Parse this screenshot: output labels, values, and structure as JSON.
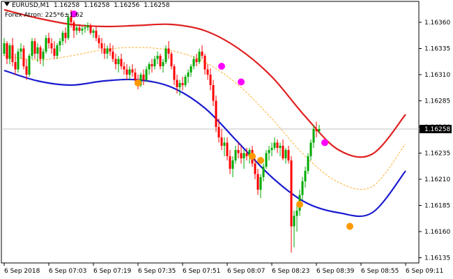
{
  "symbol": "EURUSD,M1",
  "ohlc": [
    "1.16258",
    "1.16258",
    "1.16256",
    "1.16258"
  ],
  "indicator": "Forex Atron: 225*6±1.62",
  "current_price": "1.16258",
  "colors": {
    "bull": "#00aa00",
    "bear": "#ff0000",
    "upper_band": "#e02020",
    "lower_band": "#1a1ad0",
    "mid_band": "#ffb030",
    "sell_dot": "#ff00ff",
    "buy_dot": "#ff9900",
    "axis": "#000000"
  },
  "chart_data": {
    "type": "candlestick",
    "price_axis": {
      "ticks": [
        "1.16360",
        "1.16335",
        "1.16310",
        "1.16285",
        "1.16260",
        "1.16235",
        "1.16210",
        "1.16185",
        "1.16160",
        "1.16135"
      ],
      "range": [
        1.1613,
        1.1638
      ]
    },
    "time_axis": {
      "ticks": [
        "6 Sep 2018",
        "6 Sep 07:03",
        "6 Sep 07:19",
        "6 Sep 07:35",
        "6 Sep 07:51",
        "6 Sep 08:07",
        "6 Sep 08:23",
        "6 Sep 08:39",
        "6 Sep 08:55",
        "6 Sep 09:11"
      ],
      "minutes": [
        0,
        16,
        32,
        48,
        64,
        80,
        96,
        112,
        128,
        144
      ]
    },
    "candles": [
      [
        1.1633,
        1.16345,
        1.16328,
        1.1634
      ],
      [
        1.1634,
        1.16342,
        1.1632,
        1.16325
      ],
      [
        1.16325,
        1.1634,
        1.1632,
        1.16338
      ],
      [
        1.16338,
        1.16345,
        1.16318,
        1.16322
      ],
      [
        1.16322,
        1.1633,
        1.1631,
        1.16315
      ],
      [
        1.16315,
        1.16335,
        1.16312,
        1.16332
      ],
      [
        1.16332,
        1.1634,
        1.16325,
        1.16335
      ],
      [
        1.16335,
        1.16338,
        1.16315,
        1.16318
      ],
      [
        1.16318,
        1.16325,
        1.16305,
        1.1631
      ],
      [
        1.1631,
        1.1633,
        1.16308,
        1.16328
      ],
      [
        1.16328,
        1.16345,
        1.16325,
        1.16342
      ],
      [
        1.16342,
        1.16345,
        1.16325,
        1.1633
      ],
      [
        1.1633,
        1.1634,
        1.16322,
        1.16336
      ],
      [
        1.16336,
        1.16338,
        1.1632,
        1.16325
      ],
      [
        1.16325,
        1.16335,
        1.16318,
        1.16332
      ],
      [
        1.16332,
        1.16348,
        1.1633,
        1.16345
      ],
      [
        1.16345,
        1.1635,
        1.16335,
        1.1634
      ],
      [
        1.1634,
        1.16345,
        1.1633,
        1.16335
      ],
      [
        1.16335,
        1.16342,
        1.16325,
        1.16328
      ],
      [
        1.16328,
        1.1634,
        1.16325,
        1.16338
      ],
      [
        1.16338,
        1.16345,
        1.16332,
        1.16342
      ],
      [
        1.16342,
        1.16352,
        1.16338,
        1.1635
      ],
      [
        1.1635,
        1.16355,
        1.1634,
        1.16345
      ],
      [
        1.16345,
        1.16368,
        1.16343,
        1.16365
      ],
      [
        1.16365,
        1.16372,
        1.16355,
        1.1636
      ],
      [
        1.1636,
        1.16362,
        1.16345,
        1.16352
      ],
      [
        1.16352,
        1.16358,
        1.16348,
        1.16355
      ],
      [
        1.16355,
        1.16358,
        1.1635,
        1.16352
      ],
      [
        1.16352,
        1.16356,
        1.16348,
        1.16354
      ],
      [
        1.16354,
        1.16358,
        1.1635,
        1.16355
      ],
      [
        1.16355,
        1.1636,
        1.16352,
        1.16357
      ],
      [
        1.16357,
        1.16359,
        1.16348,
        1.1635
      ],
      [
        1.1635,
        1.16354,
        1.16345,
        1.16352
      ],
      [
        1.16352,
        1.16356,
        1.16342,
        1.16345
      ],
      [
        1.16345,
        1.16348,
        1.16335,
        1.1634
      ],
      [
        1.1634,
        1.16345,
        1.1633,
        1.16335
      ],
      [
        1.16335,
        1.1634,
        1.16325,
        1.1633
      ],
      [
        1.1633,
        1.16338,
        1.16325,
        1.16335
      ],
      [
        1.16335,
        1.1634,
        1.16328,
        1.16332
      ],
      [
        1.16332,
        1.16338,
        1.16322,
        1.16325
      ],
      [
        1.16325,
        1.1633,
        1.16315,
        1.1632
      ],
      [
        1.1632,
        1.16328,
        1.16312,
        1.16325
      ],
      [
        1.16325,
        1.1633,
        1.16315,
        1.16318
      ],
      [
        1.16318,
        1.16322,
        1.1631,
        1.16315
      ],
      [
        1.16315,
        1.1632,
        1.16305,
        1.1631
      ],
      [
        1.1631,
        1.16318,
        1.16305,
        1.16315
      ],
      [
        1.16315,
        1.1632,
        1.16308,
        1.16312
      ],
      [
        1.16312,
        1.16316,
        1.163,
        1.16305
      ],
      [
        1.16305,
        1.1631,
        1.16296,
        1.163
      ],
      [
        1.163,
        1.16312,
        1.16298,
        1.1631
      ],
      [
        1.1631,
        1.16315,
        1.163,
        1.16305
      ],
      [
        1.16305,
        1.16318,
        1.16303,
        1.16315
      ],
      [
        1.16315,
        1.16322,
        1.1631,
        1.1632
      ],
      [
        1.1632,
        1.16325,
        1.16312,
        1.16318
      ],
      [
        1.16318,
        1.16328,
        1.16315,
        1.16325
      ],
      [
        1.16325,
        1.16332,
        1.1632,
        1.16328
      ],
      [
        1.16328,
        1.1633,
        1.16315,
        1.16318
      ],
      [
        1.16318,
        1.16325,
        1.16312,
        1.16322
      ],
      [
        1.16322,
        1.16338,
        1.1632,
        1.16335
      ],
      [
        1.16335,
        1.16342,
        1.16325,
        1.1633
      ],
      [
        1.1633,
        1.16332,
        1.16315,
        1.16318
      ],
      [
        1.16318,
        1.1632,
        1.163,
        1.16305
      ],
      [
        1.16305,
        1.1631,
        1.16292,
        1.16298
      ],
      [
        1.16298,
        1.16305,
        1.1629,
        1.16302
      ],
      [
        1.16302,
        1.16308,
        1.16295,
        1.163
      ],
      [
        1.163,
        1.1631,
        1.16298,
        1.16308
      ],
      [
        1.16308,
        1.16315,
        1.16302,
        1.16312
      ],
      [
        1.16312,
        1.1632,
        1.16308,
        1.16318
      ],
      [
        1.16318,
        1.16328,
        1.16315,
        1.16325
      ],
      [
        1.16325,
        1.1633,
        1.16318,
        1.16322
      ],
      [
        1.16322,
        1.16335,
        1.1632,
        1.16332
      ],
      [
        1.16332,
        1.16338,
        1.16325,
        1.16328
      ],
      [
        1.16328,
        1.1633,
        1.1631,
        1.16315
      ],
      [
        1.16315,
        1.1632,
        1.16305,
        1.1631
      ],
      [
        1.1631,
        1.16316,
        1.16295,
        1.163
      ],
      [
        1.163,
        1.16305,
        1.1628,
        1.16285
      ],
      [
        1.16285,
        1.1629,
        1.16255,
        1.1626
      ],
      [
        1.1626,
        1.16268,
        1.16245,
        1.1625
      ],
      [
        1.1625,
        1.16258,
        1.16238,
        1.16242
      ],
      [
        1.16242,
        1.1625,
        1.16232,
        1.16245
      ],
      [
        1.16245,
        1.1625,
        1.16228,
        1.16232
      ],
      [
        1.16232,
        1.16238,
        1.16215,
        1.1622
      ],
      [
        1.1622,
        1.16232,
        1.16212,
        1.16228
      ],
      [
        1.16228,
        1.16242,
        1.16225,
        1.16238
      ],
      [
        1.16238,
        1.16245,
        1.1623,
        1.16235
      ],
      [
        1.16235,
        1.16242,
        1.16225,
        1.1623
      ],
      [
        1.1623,
        1.16238,
        1.1622,
        1.16235
      ],
      [
        1.16235,
        1.1624,
        1.16228,
        1.16232
      ],
      [
        1.16232,
        1.1624,
        1.16225,
        1.16238
      ],
      [
        1.16238,
        1.16242,
        1.16222,
        1.16225
      ],
      [
        1.16225,
        1.1623,
        1.1621,
        1.16215
      ],
      [
        1.16215,
        1.1622,
        1.16195,
        1.162
      ],
      [
        1.162,
        1.16215,
        1.16192,
        1.16212
      ],
      [
        1.16212,
        1.16225,
        1.16208,
        1.16222
      ],
      [
        1.16222,
        1.16238,
        1.1622,
        1.16235
      ],
      [
        1.16235,
        1.16242,
        1.16228,
        1.16238
      ],
      [
        1.16238,
        1.16245,
        1.16232,
        1.1624
      ],
      [
        1.1624,
        1.1625,
        1.16238,
        1.16245
      ],
      [
        1.16245,
        1.16248,
        1.16235,
        1.1624
      ],
      [
        1.1624,
        1.16245,
        1.16232,
        1.16242
      ],
      [
        1.16242,
        1.16248,
        1.16228,
        1.1623
      ],
      [
        1.1623,
        1.1624,
        1.16225,
        1.16238
      ],
      [
        1.16238,
        1.16242,
        1.16225,
        1.16228
      ],
      [
        1.16228,
        1.16232,
        1.1614,
        1.16165
      ],
      [
        1.16165,
        1.1618,
        1.16145,
        1.16175
      ],
      [
        1.16175,
        1.16185,
        1.1616,
        1.1618
      ],
      [
        1.1618,
        1.162,
        1.16175,
        1.16195
      ],
      [
        1.16195,
        1.16212,
        1.1619,
        1.16208
      ],
      [
        1.16208,
        1.16222,
        1.16202,
        1.16218
      ],
      [
        1.16218,
        1.16235,
        1.16215,
        1.16232
      ],
      [
        1.16232,
        1.16248,
        1.16228,
        1.16245
      ],
      [
        1.16245,
        1.16262,
        1.1624,
        1.16258
      ],
      [
        1.16258,
        1.16265,
        1.1625,
        1.16256
      ],
      [
        1.16256,
        1.16262,
        1.16254,
        1.16258
      ]
    ],
    "upper_band": [
      1.16372,
      1.16364,
      1.16358,
      1.16356,
      1.16357,
      1.16358,
      1.16352,
      1.16335,
      1.16308,
      1.1627,
      1.16238,
      1.16234,
      1.16272
    ],
    "mid_band": [
      1.16328,
      1.16324,
      1.16328,
      1.16334,
      1.16336,
      1.16333,
      1.16322,
      1.163,
      1.16268,
      1.16232,
      1.16207,
      1.16203,
      1.16244
    ],
    "lower_band": [
      1.16314,
      1.16304,
      1.163,
      1.16304,
      1.16305,
      1.16298,
      1.16278,
      1.16245,
      1.16212,
      1.16188,
      1.16178,
      1.16178,
      1.16218
    ],
    "sell_signals": [
      [
        25,
        1.16368
      ],
      [
        78,
        1.16318
      ],
      [
        85,
        1.16303
      ],
      [
        115,
        1.16245
      ]
    ],
    "buy_signals": [
      [
        48,
        1.16302
      ],
      [
        89,
        1.16232
      ],
      [
        92,
        1.16228
      ],
      [
        106,
        1.16186
      ],
      [
        124,
        1.16165
      ]
    ]
  }
}
